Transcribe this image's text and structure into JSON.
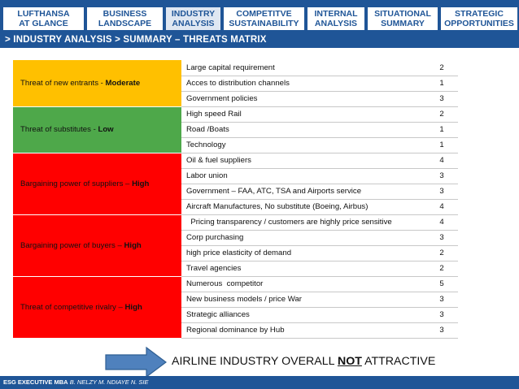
{
  "nav": {
    "tabs": [
      {
        "line1": "LUFTHANSA",
        "line2": "AT GLANCE"
      },
      {
        "line1": "BUSINESS",
        "line2": "LANDSCAPE"
      },
      {
        "line1": "INDUSTRY",
        "line2": "ANALYSIS",
        "active": true
      },
      {
        "line1": "COMPETITVE",
        "line2": "SUSTAINABILITY"
      },
      {
        "line1": "INTERNAL",
        "line2": "ANALYSIS"
      },
      {
        "line1": "SITUATIONAL",
        "line2": "SUMMARY"
      },
      {
        "line1": "STRATEGIC",
        "line2": "OPPORTUNITIES"
      }
    ]
  },
  "breadcrumb": "> INDUSTRY ANALYSIS > SUMMARY – THREATS MATRIX",
  "matrix": {
    "categories": [
      {
        "label": "Threat of new entrants - ",
        "level": "Moderate",
        "color": "#ffc000",
        "factors": [
          {
            "name": "Large capital requirement",
            "score": "2"
          },
          {
            "name": "Acces to distribution channels",
            "score": "1"
          },
          {
            "name": "Government policies",
            "score": "3"
          }
        ]
      },
      {
        "label": "Threat of substitutes - ",
        "level": "Low",
        "color": "#4ea84a",
        "factors": [
          {
            "name": "High speed Rail",
            "score": "2"
          },
          {
            "name": "Road /Boats",
            "score": "1"
          },
          {
            "name": "Technology",
            "score": "1"
          }
        ]
      },
      {
        "label": "Bargaining power of suppliers – ",
        "level": "High",
        "color": "#ff0000",
        "factors": [
          {
            "name": "Oil & fuel suppliers",
            "score": "4"
          },
          {
            "name": "Labor union",
            "score": "3"
          },
          {
            "name": "Government – FAA, ATC, TSA and Airports service",
            "score": "3"
          },
          {
            "name": "Aircraft Manufactures, No substitute (Boeing, Airbus)",
            "score": "4"
          }
        ]
      },
      {
        "label": "Bargaining power of buyers – ",
        "level": "High",
        "color": "#ff0000",
        "factors": [
          {
            "name": "  Pricing transparency / customers are highly price sensitive",
            "score": "4"
          },
          {
            "name": "Corp purchasing",
            "score": "3"
          },
          {
            "name": "high price elasticity of demand",
            "score": "2"
          },
          {
            "name": "Travel agencies",
            "score": "2"
          }
        ]
      },
      {
        "label": "Threat of competitive rivalry – ",
        "level": "High",
        "color": "#ff0000",
        "factors": [
          {
            "name": "Numerous  competitor",
            "score": "5"
          },
          {
            "name": "New business models / price War",
            "score": "3"
          },
          {
            "name": "Strategic alliances",
            "score": "3"
          },
          {
            "name": "Regional dominance by Hub",
            "score": "3"
          }
        ]
      }
    ]
  },
  "conclusion": {
    "before": "AIRLINE INDUSTRY OVERALL ",
    "emphasis": "NOT",
    "after": " ATTRACTIVE",
    "arrow_icon": "right-arrow-icon",
    "arrow_color": "#4f81bd"
  },
  "footer": {
    "program": "ESG EXECUTIVE MBA",
    "authors": " B. NELZY  M. NDIAYE  N. SIE"
  },
  "colors": {
    "brand": "#1f5597",
    "moderate": "#ffc000",
    "low": "#4ea84a",
    "high": "#ff0000"
  }
}
